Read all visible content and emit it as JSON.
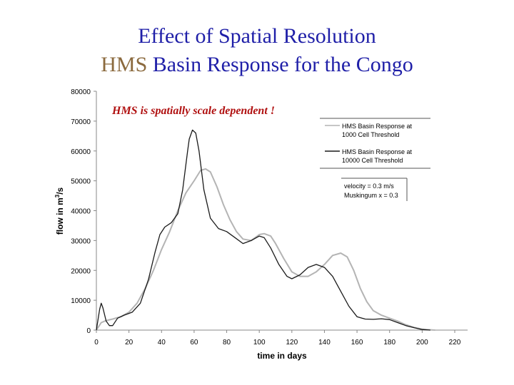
{
  "slide": {
    "title_line1": "Effect of Spatial Resolution",
    "title_line2_prefix": "HMS",
    "title_line2_rest": " Basin Response for the Congo"
  },
  "colors": {
    "title_blue": "#1f1fa8",
    "title_brown": "#8b6a3e",
    "annotation_red": "#b01010",
    "series_1000": "#b4b4b4",
    "series_10000": "#1a1a1a"
  },
  "chart_data": {
    "type": "line",
    "annotation": "HMS is spatially scale dependent !",
    "xlabel": "time in days",
    "ylabel_prefix": "flow in m",
    "ylabel_sup": "3",
    "ylabel_suffix": "/s",
    "xlim": [
      0,
      220
    ],
    "ylim": [
      0,
      80000
    ],
    "x_ticks": [
      0,
      20,
      40,
      60,
      80,
      100,
      120,
      140,
      160,
      180,
      200,
      220
    ],
    "y_ticks": [
      0,
      10000,
      20000,
      30000,
      40000,
      50000,
      60000,
      70000,
      80000
    ],
    "grid": false,
    "legend_position": "top-right",
    "parameters": [
      "velocity = 0.3 m/s",
      "Muskingum x = 0.3"
    ],
    "series": [
      {
        "name": "HMS Basin Response at 1000 Cell Threshold",
        "legend_line1": "HMS Basin Response at",
        "legend_line2": "1000 Cell Threshold",
        "points": [
          [
            0,
            0
          ],
          [
            3,
            2500
          ],
          [
            6,
            3200
          ],
          [
            10,
            3700
          ],
          [
            15,
            4500
          ],
          [
            20,
            6000
          ],
          [
            25,
            9000
          ],
          [
            30,
            14000
          ],
          [
            35,
            20000
          ],
          [
            40,
            27000
          ],
          [
            45,
            33000
          ],
          [
            50,
            40000
          ],
          [
            55,
            46000
          ],
          [
            60,
            50000
          ],
          [
            64,
            53500
          ],
          [
            67,
            54000
          ],
          [
            70,
            53000
          ],
          [
            74,
            48000
          ],
          [
            78,
            42000
          ],
          [
            82,
            37000
          ],
          [
            86,
            33000
          ],
          [
            90,
            30500
          ],
          [
            95,
            30000
          ],
          [
            100,
            32000
          ],
          [
            103,
            32300
          ],
          [
            107,
            31500
          ],
          [
            110,
            29000
          ],
          [
            115,
            24000
          ],
          [
            120,
            19500
          ],
          [
            125,
            18000
          ],
          [
            130,
            18000
          ],
          [
            135,
            19500
          ],
          [
            140,
            22000
          ],
          [
            145,
            25000
          ],
          [
            150,
            25800
          ],
          [
            154,
            24500
          ],
          [
            158,
            20000
          ],
          [
            162,
            14000
          ],
          [
            166,
            9500
          ],
          [
            170,
            6500
          ],
          [
            175,
            5000
          ],
          [
            180,
            4000
          ],
          [
            185,
            3000
          ],
          [
            190,
            1800
          ],
          [
            195,
            900
          ],
          [
            200,
            300
          ],
          [
            205,
            100
          ],
          [
            208,
            0
          ]
        ]
      },
      {
        "name": "HMS Basin Response at 10000 Cell Threshold",
        "legend_line1": "HMS Basin Response at",
        "legend_line2": "10000 Cell Threshold",
        "points": [
          [
            0,
            0
          ],
          [
            2,
            7000
          ],
          [
            3,
            9000
          ],
          [
            4,
            7500
          ],
          [
            6,
            3000
          ],
          [
            8,
            1500
          ],
          [
            10,
            1500
          ],
          [
            13,
            4000
          ],
          [
            17,
            5000
          ],
          [
            22,
            6000
          ],
          [
            27,
            9000
          ],
          [
            32,
            17000
          ],
          [
            36,
            26000
          ],
          [
            39,
            32000
          ],
          [
            42,
            34500
          ],
          [
            46,
            36000
          ],
          [
            50,
            39000
          ],
          [
            53,
            47000
          ],
          [
            56,
            60000
          ],
          [
            57,
            64000
          ],
          [
            59,
            67000
          ],
          [
            61,
            66000
          ],
          [
            63,
            60000
          ],
          [
            66,
            47000
          ],
          [
            70,
            37500
          ],
          [
            75,
            34000
          ],
          [
            80,
            33000
          ],
          [
            85,
            31000
          ],
          [
            90,
            29000
          ],
          [
            95,
            30000
          ],
          [
            100,
            31500
          ],
          [
            103,
            31000
          ],
          [
            107,
            27500
          ],
          [
            112,
            22000
          ],
          [
            117,
            18000
          ],
          [
            120,
            17200
          ],
          [
            125,
            18500
          ],
          [
            130,
            21000
          ],
          [
            135,
            22000
          ],
          [
            140,
            21000
          ],
          [
            145,
            18000
          ],
          [
            150,
            13000
          ],
          [
            155,
            8000
          ],
          [
            160,
            4500
          ],
          [
            165,
            3700
          ],
          [
            170,
            3600
          ],
          [
            175,
            3800
          ],
          [
            180,
            3500
          ],
          [
            185,
            2500
          ],
          [
            190,
            1500
          ],
          [
            195,
            800
          ],
          [
            200,
            200
          ],
          [
            205,
            0
          ]
        ]
      }
    ]
  }
}
